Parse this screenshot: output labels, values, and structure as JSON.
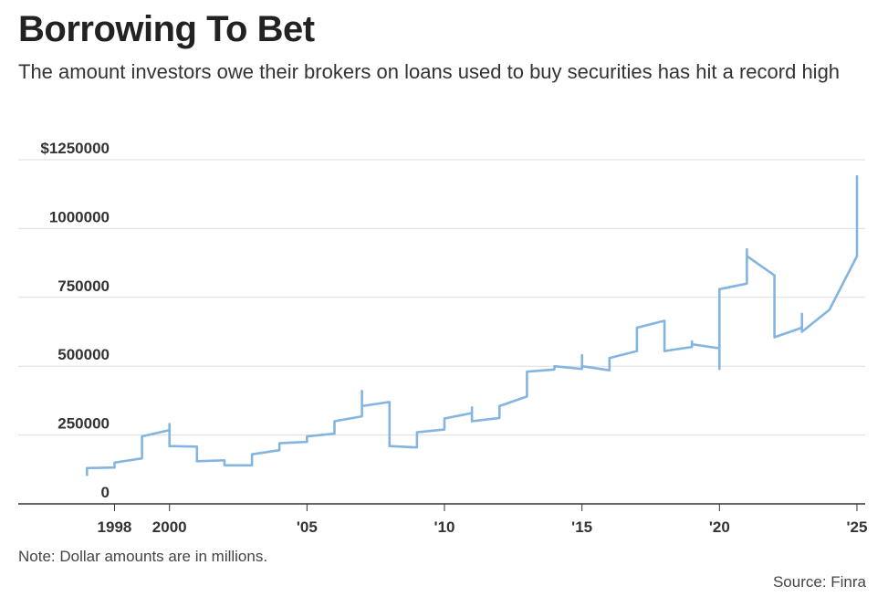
{
  "title": "Borrowing To Bet",
  "subtitle": "The amount investors owe their brokers on loans used to buy securities has hit a record high",
  "note": "Note: Dollar amounts are in millions.",
  "source": "Source: Finra",
  "colors": {
    "line": "#84b5e0",
    "grid": "#dddddd",
    "axis": "#333333"
  },
  "chart_data": {
    "type": "line",
    "title": "Borrowing To Bet",
    "ylim": [
      0,
      1250000
    ],
    "xlim": [
      1994.5,
      2025.3
    ],
    "grid": true,
    "y_ticks": [
      {
        "value": 1250000,
        "label": "$1250000"
      },
      {
        "value": 1000000,
        "label": "1000000"
      },
      {
        "value": 750000,
        "label": "750000"
      },
      {
        "value": 500000,
        "label": "500000"
      },
      {
        "value": 250000,
        "label": "250000"
      },
      {
        "value": 0,
        "label": "0"
      }
    ],
    "x_ticks": [
      {
        "value": 1998,
        "label": "1998"
      },
      {
        "value": 2000,
        "label": "2000"
      },
      {
        "value": 2005,
        "label": "'05"
      },
      {
        "value": 2010,
        "label": "'10"
      },
      {
        "value": 2015,
        "label": "'15"
      },
      {
        "value": 2020,
        "label": "'20"
      },
      {
        "value": 2025,
        "label": "'25"
      }
    ],
    "series": [
      {
        "x": [
          1997,
          1997,
          1998,
          1998,
          1999,
          1999,
          2000,
          2000,
          2000,
          2001,
          2001,
          2002,
          2002,
          2003,
          2003,
          2004,
          2004,
          2005,
          2005,
          2006,
          2006,
          2007,
          2007,
          2007,
          2008,
          2008,
          2009,
          2009,
          2010,
          2010,
          2011,
          2011,
          2011,
          2012,
          2012,
          2013,
          2013,
          2014,
          2014,
          2014,
          2015,
          2015,
          2015,
          2016,
          2016,
          2016,
          2017,
          2017,
          2018,
          2018,
          2019,
          2019,
          2019,
          2020,
          2020,
          2020,
          2021,
          2021,
          2021,
          2022,
          2022,
          2023,
          2023,
          2023,
          2024,
          2024,
          2025,
          2025,
          2025
        ],
        "y": [
          105000,
          130000,
          132000,
          150000,
          165000,
          245000,
          268000,
          290000,
          210000,
          208000,
          155000,
          158000,
          140000,
          140000,
          180000,
          195000,
          220000,
          225000,
          245000,
          255000,
          300000,
          318000,
          410000,
          355000,
          370000,
          210000,
          205000,
          260000,
          270000,
          310000,
          330000,
          350000,
          300000,
          312000,
          355000,
          390000,
          480000,
          488000,
          495000,
          500000,
          490000,
          540000,
          500000,
          485000,
          525000,
          530000,
          555000,
          640000,
          665000,
          555000,
          570000,
          590000,
          580000,
          565000,
          490000,
          780000,
          800000,
          925000,
          900000,
          830000,
          605000,
          640000,
          690000,
          625000,
          705000,
          705000,
          900000,
          935000,
          1190000
        ]
      }
    ]
  }
}
